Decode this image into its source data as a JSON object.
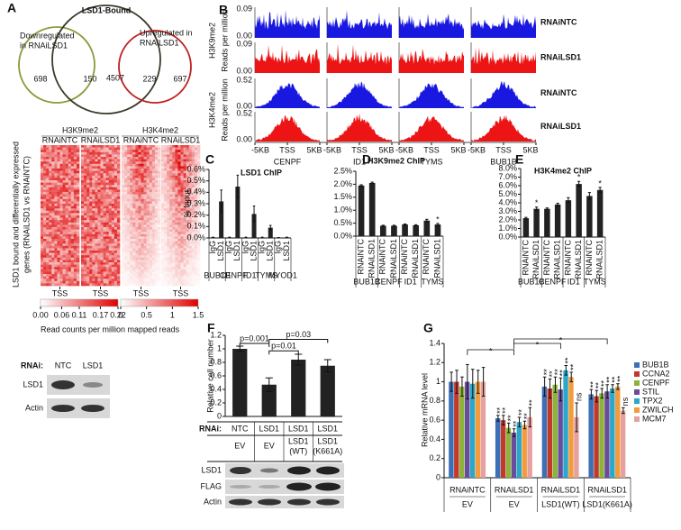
{
  "panel_labels": {
    "a": "A",
    "b": "B",
    "c": "C",
    "d": "D",
    "e": "E",
    "f": "F",
    "g": "G"
  },
  "venn": {
    "title": "LSD1-Bound",
    "left_label": [
      "Downregulated",
      "in RNAiLSD1"
    ],
    "right_label": [
      "Upregulated in",
      "RNAiLSD1"
    ],
    "counts": [
      698,
      150,
      4507,
      229,
      697
    ]
  },
  "heatmap": {
    "marks": [
      "H3K9me2",
      "H3K4me2"
    ],
    "columns": [
      "RNAiNTC",
      "RNAiLSD1",
      "RNAiNTC",
      "RNAiLSD1"
    ],
    "y_label": [
      "LSD1 bound and differentially expressed",
      "genes (RNAiLSD1 vs RNAiNTC)"
    ],
    "x_label": "TSS",
    "scale1_ticks": [
      {
        "value": 0,
        "label": "0.00"
      },
      {
        "value": 0.06,
        "label": "0.06"
      },
      0.11,
      0.17,
      0.22
    ],
    "scale2_ticks": [
      0,
      0.5,
      1,
      1.5
    ],
    "scale_label": "Read counts per million mapped reads"
  },
  "blot_a": {
    "row_label": "RNAi:",
    "lanes": [
      "NTC",
      "LSD1"
    ],
    "bands": [
      "LSD1",
      "Actin"
    ]
  },
  "tracks": {
    "marks": [
      "H3K9me2",
      "H3K4me2"
    ],
    "y_label": "Reads per million",
    "conditions": [
      "RNAiNTC",
      "RNAiLSD1",
      "RNAiNTC",
      "RNAiLSD1"
    ],
    "row_ticks": [
      [
        0.09,
        {
          "value": 0,
          "label": "0.00"
        }
      ],
      [
        0.09,
        {
          "value": 0,
          "label": "0.00"
        }
      ],
      [
        0.52,
        {
          "value": 0,
          "label": "0.00"
        }
      ],
      [
        0.52,
        {
          "value": 0,
          "label": "0.00"
        }
      ]
    ],
    "genes": [
      "CENPF",
      "ID1",
      "TYMS",
      "BUB1B"
    ],
    "x_ticks": [
      "-5KB",
      "TSS",
      "5KB"
    ]
  },
  "chart_data": [
    {
      "type": "bar",
      "title": "LSD1 ChIP",
      "y_label": "% Input",
      "color": "#222222",
      "categories": [
        "IgG",
        "LSD1",
        "IgG",
        "LSD1",
        "IgG",
        "LSD1",
        "IgG",
        "LSD1",
        "IgG",
        "LSD1"
      ],
      "groups": [
        "BUB1B",
        "CENPF",
        "ID1",
        "TYMS",
        "MYOD1"
      ],
      "values": [
        0.005,
        0.32,
        0.005,
        0.45,
        0.005,
        0.21,
        0.005,
        0.09,
        0.003,
        0.005
      ],
      "errors": [
        0.002,
        0.1,
        0.002,
        0.1,
        0.002,
        0.07,
        0.002,
        0.02,
        0.001,
        0.002
      ],
      "ylim": [
        0,
        0.6
      ],
      "yticks": [
        {
          "value": 0,
          "label": "0.0%"
        },
        {
          "value": 0.1,
          "label": "0.1%"
        },
        {
          "value": 0.2,
          "label": "0.2%"
        },
        {
          "value": 0.3,
          "label": "0.3%"
        },
        {
          "value": 0.4,
          "label": "0.4%"
        },
        {
          "value": 0.5,
          "label": "0.5%"
        },
        {
          "value": 0.6,
          "label": "0.6%"
        }
      ]
    },
    {
      "type": "bar",
      "title": "H3K9me2 ChIP",
      "color": "#222222",
      "categories": [
        "RNAiNTC",
        "RNAiLSD1",
        "RNAiNTC",
        "RNAiLSD1",
        "RNAiNTC",
        "RNAiLSD1",
        "RNAiNTC",
        "RNAiLSD1"
      ],
      "groups": [
        "BUB1B",
        "CENPF",
        "ID1",
        "TYMS"
      ],
      "values": [
        1.95,
        2.05,
        0.4,
        0.4,
        0.45,
        0.42,
        0.6,
        0.45
      ],
      "errors": [
        0.03,
        0.03,
        0.02,
        0.02,
        0.02,
        0.02,
        0.05,
        0.04
      ],
      "annotations": [
        null,
        null,
        null,
        null,
        null,
        null,
        null,
        "*"
      ],
      "ylim": [
        0,
        2.5
      ],
      "yticks": [
        {
          "value": 0,
          "label": "0.0%"
        },
        {
          "value": 0.5,
          "label": "0.5%"
        },
        {
          "value": 1,
          "label": "1.0%"
        },
        {
          "value": 1.5,
          "label": "1.5%"
        },
        {
          "value": 2,
          "label": "2.0%"
        },
        {
          "value": 2.5,
          "label": "2.5%"
        }
      ]
    },
    {
      "type": "bar",
      "title": "H3K4me2 ChIP",
      "color": "#222222",
      "categories": [
        "RNAiNTC",
        "RNAiLSD1",
        "RNAiNTC",
        "RNAiLSD1",
        "RNAiNTC",
        "RNAiLSD1",
        "RNAiNTC",
        "RNAiLSD1"
      ],
      "groups": [
        "BUB1B",
        "CENPF",
        "ID1",
        "TYMS"
      ],
      "values": [
        2.2,
        3.3,
        3.3,
        3.8,
        4.3,
        6.2,
        4.8,
        5.5
      ],
      "errors": [
        0.1,
        0.2,
        0.1,
        0.15,
        0.3,
        0.3,
        0.4,
        0.3
      ],
      "annotations": [
        null,
        "*",
        null,
        null,
        null,
        "*",
        null,
        "*"
      ],
      "ylim": [
        0,
        8
      ],
      "yticks": [
        {
          "value": 0,
          "label": "0.0%"
        },
        {
          "value": 1,
          "label": "1.0%"
        },
        {
          "value": 2,
          "label": "2.0%"
        },
        {
          "value": 3,
          "label": "3.0%"
        },
        {
          "value": 4,
          "label": "4.0%"
        },
        {
          "value": 5,
          "label": "5.0%"
        },
        {
          "value": 6,
          "label": "6.0%"
        },
        {
          "value": 7,
          "label": "7.0%"
        },
        {
          "value": 8,
          "label": "8.0%"
        }
      ]
    },
    {
      "type": "bar",
      "y_label": "Relative cell number",
      "color": "#222222",
      "row_label": "RNAi:",
      "categories": [
        "NTC",
        "LSD1",
        "LSD1",
        "LSD1"
      ],
      "conditions": [
        [
          "EV"
        ],
        [
          "EV"
        ],
        [
          "LSD1",
          "(WT)"
        ],
        [
          "LSD1",
          "(K661A)"
        ]
      ],
      "values": [
        1.0,
        0.47,
        0.84,
        0.75
      ],
      "errors": [
        0.04,
        0.1,
        0.08,
        0.09
      ],
      "annotations": [
        "p=0.001",
        "p=0.01",
        "p=0.03"
      ],
      "bands": [
        "LSD1",
        "FLAG",
        "Actin"
      ],
      "ylim": [
        0,
        1.2
      ],
      "yticks": [
        0,
        0.2,
        0.4,
        0.6,
        0.8,
        1,
        1.2
      ]
    },
    {
      "type": "grouped_bar",
      "y_label": "Relative mRNA level",
      "categories": [
        "RNAiNTC",
        "RNAiLSD1",
        "RNAiLSD1",
        "RNAiLSD1"
      ],
      "conditions": [
        "EV",
        "EV",
        "LSD1(WT)",
        "LSD1(K661A)"
      ],
      "bracket_labels": [
        "*",
        "*",
        "*"
      ],
      "series": [
        {
          "name": "BUB1B",
          "color": "#3c6fb6",
          "values": [
            1.0,
            0.62,
            0.95,
            0.87
          ],
          "errors": [
            0.1,
            0.03,
            0.1,
            0.05
          ],
          "annotations": [
            null,
            "**",
            "**",
            "**"
          ]
        },
        {
          "name": "CCNA2",
          "color": "#c0392b",
          "values": [
            1.0,
            0.6,
            0.93,
            0.85
          ],
          "errors": [
            0.12,
            0.05,
            0.1,
            0.06
          ],
          "annotations": [
            null,
            "**",
            "**",
            "**"
          ]
        },
        {
          "name": "CENPF",
          "color": "#8db33a",
          "values": [
            0.95,
            0.52,
            0.97,
            0.88
          ],
          "errors": [
            0.1,
            0.05,
            0.08,
            0.05
          ],
          "annotations": [
            null,
            "**",
            "**",
            "**"
          ]
        },
        {
          "name": "STIL",
          "color": "#6a4c9c",
          "values": [
            1.0,
            0.47,
            0.92,
            0.9
          ],
          "errors": [
            0.18,
            0.04,
            0.12,
            0.07
          ],
          "annotations": [
            null,
            "**",
            "**",
            "**"
          ]
        },
        {
          "name": "TPX2",
          "color": "#2aa7c9",
          "values": [
            0.98,
            0.58,
            1.12,
            0.93
          ],
          "errors": [
            0.15,
            0.05,
            0.05,
            0.04
          ],
          "annotations": [
            null,
            "**",
            "**",
            "**"
          ]
        },
        {
          "name": "ZWILCH",
          "color": "#f39c3c",
          "values": [
            1.0,
            0.55,
            1.05,
            0.95
          ],
          "errors": [
            0.12,
            0.04,
            0.05,
            0.03
          ],
          "annotations": [
            null,
            "**",
            "**",
            "**"
          ]
        },
        {
          "name": "MCM7",
          "color": "#e6a0a0",
          "values": [
            1.0,
            0.63,
            0.63,
            0.7
          ],
          "errors": [
            0.15,
            0.1,
            0.15,
            0.03
          ],
          "annotations": [
            null,
            "**",
            "ns",
            "ns"
          ]
        }
      ],
      "ylim": [
        0,
        1.4
      ],
      "yticks": [
        0,
        0.2,
        0.4,
        0.6,
        0.8,
        1,
        1.2,
        1.4
      ]
    }
  ]
}
